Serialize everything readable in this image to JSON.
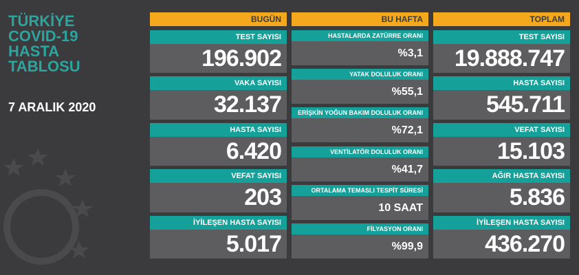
{
  "title": [
    "TÜRKİYE",
    "COVID-19",
    "HASTA",
    "TABLOSU"
  ],
  "date": "7 ARALIK 2020",
  "columns": [
    {
      "header": "BUGÜN",
      "items": [
        {
          "label": "TEST SAYISI",
          "value": "196.902"
        },
        {
          "label": "VAKA SAYISI",
          "value": "32.137"
        },
        {
          "label": "HASTA SAYISI",
          "value": "6.420"
        },
        {
          "label": "VEFAT SAYISI",
          "value": "203"
        },
        {
          "label": "İYİLEŞEN HASTA SAYISI",
          "value": "5.017"
        }
      ]
    },
    {
      "header": "BU HAFTA",
      "items": [
        {
          "label": "HASTALARDA ZATÜRRE ORANI",
          "value": "%3,1"
        },
        {
          "label": "YATAK DOLULUK ORANI",
          "value": "%55,1"
        },
        {
          "label": "ERİŞKİN YOĞUN BAKIM DOLULUK ORANI",
          "value": "%72,1"
        },
        {
          "label": "VENTİLATÖR DOLULUK ORANI",
          "value": "%41,7"
        },
        {
          "label": "ORTALAMA TEMASLI TESPİT SÜRESİ",
          "value": "10 SAAT"
        },
        {
          "label": "FİLYASYON ORANI",
          "value": "%99,9"
        }
      ]
    },
    {
      "header": "TOPLAM",
      "items": [
        {
          "label": "TEST SAYISI",
          "value": "19.888.747"
        },
        {
          "label": "HASTA SAYISI",
          "value": "545.711"
        },
        {
          "label": "VEFAT SAYISI",
          "value": "15.103"
        },
        {
          "label": "AĞIR HASTA SAYISI",
          "value": "5.836"
        },
        {
          "label": "İYİLEŞEN HASTA SAYISI",
          "value": "436.270"
        }
      ]
    }
  ]
}
